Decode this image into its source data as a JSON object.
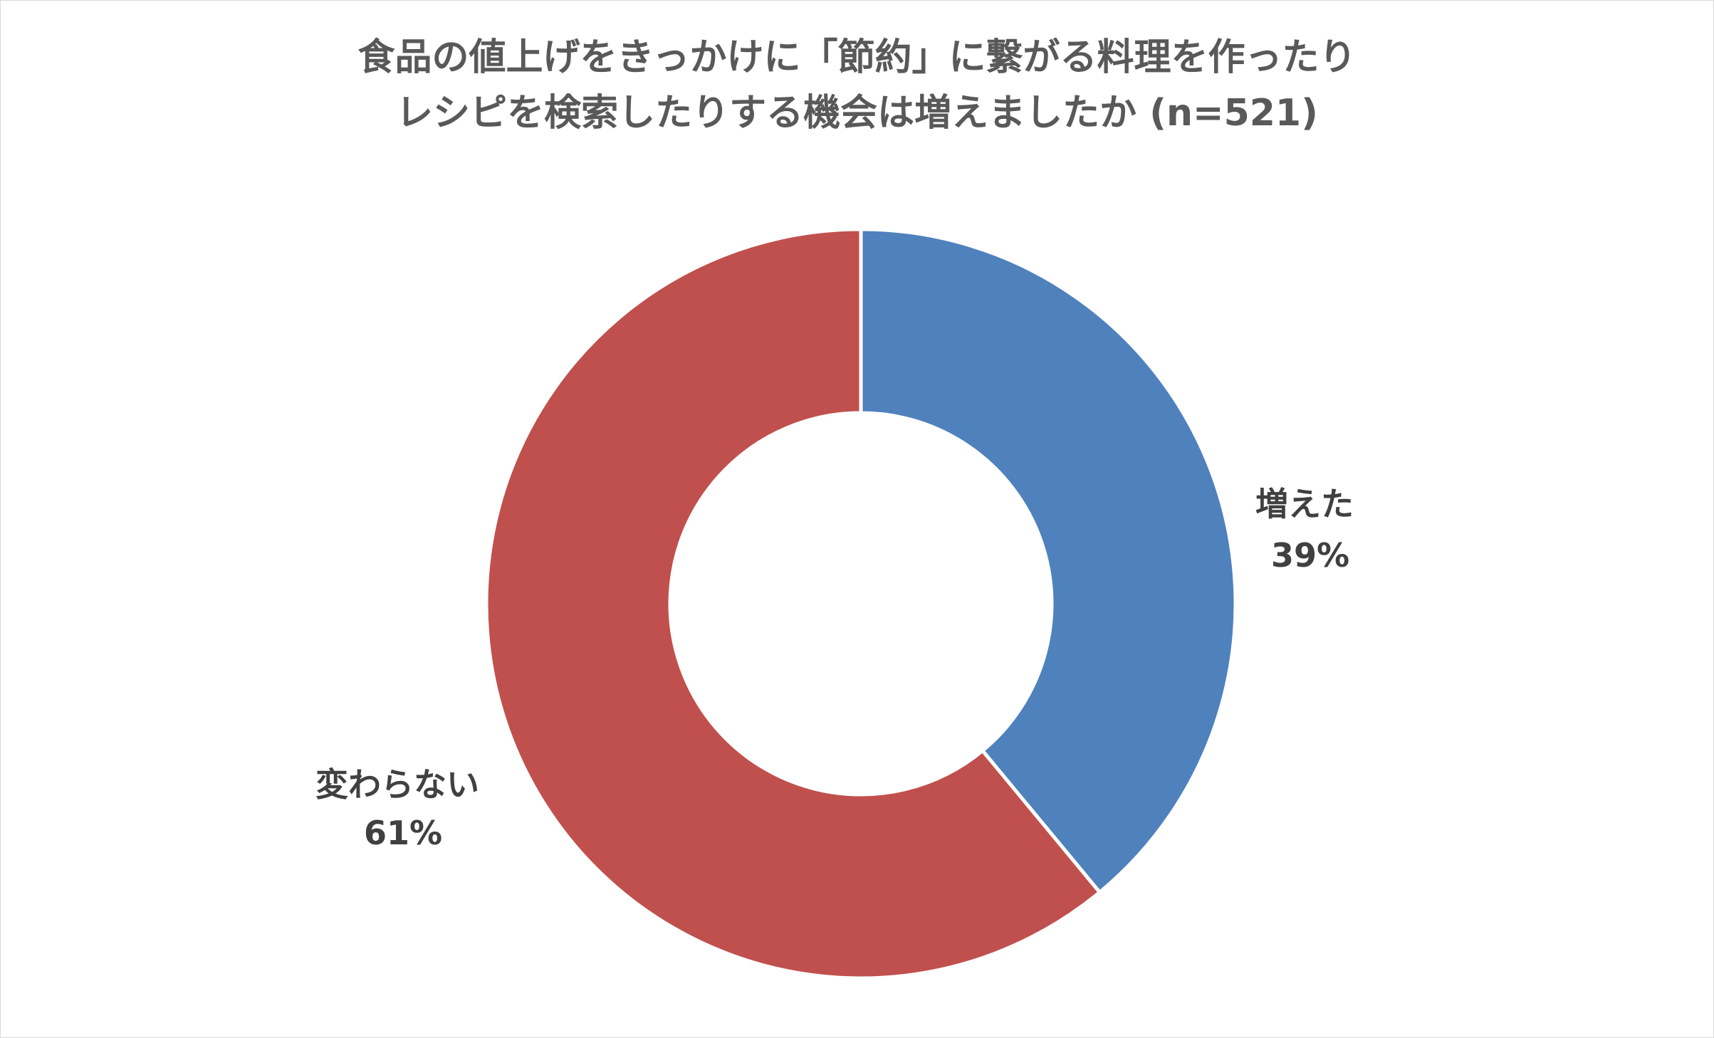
{
  "chart_data": {
    "type": "pie",
    "variant": "donut",
    "title_lines": [
      "食品の値上げをきっかけに「節約」に繋がる料理を作ったり",
      "レシピを検索したりする機会は増えましたか (n=521)"
    ],
    "slices": [
      {
        "label": "増えた",
        "value": 39,
        "value_label": "39%",
        "color": "#4f81bd"
      },
      {
        "label": "変わらない",
        "value": 61,
        "value_label": "61%",
        "color": "#c0504d"
      }
    ],
    "start_angle_deg": 0,
    "direction": "clockwise",
    "legend": "none",
    "data_labels": "outside"
  }
}
